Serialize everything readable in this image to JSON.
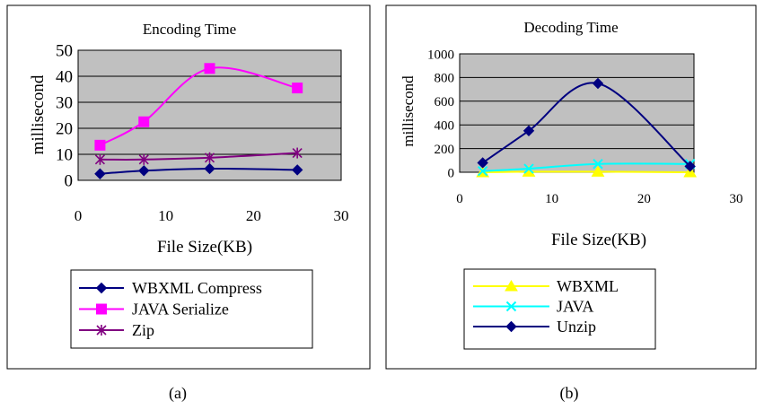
{
  "panels": [
    {
      "caption": "(a)",
      "chart_data": {
        "type": "line",
        "title": "Encoding Time",
        "xlabel": "File Size(KB)",
        "ylabel": "millisecond",
        "xlim": [
          0,
          30
        ],
        "ylim": [
          0,
          50
        ],
        "xticks": [
          0,
          10,
          20,
          30
        ],
        "yticks": [
          0,
          10,
          20,
          30,
          40,
          50
        ],
        "grid": true,
        "plot_background": "#c0c0c0",
        "legend_position": "bottom",
        "series": [
          {
            "name": "WBXML Compress",
            "color": "#000080",
            "marker": "diamond",
            "x": [
              2.5,
              7.5,
              15,
              25
            ],
            "y": [
              2.5,
              3.7,
              4.5,
              4
            ]
          },
          {
            "name": "JAVA Serialize",
            "color": "#ff00ff",
            "marker": "square",
            "x": [
              2.5,
              7.5,
              15,
              25
            ],
            "y": [
              13.5,
              22.5,
              43,
              35.5
            ]
          },
          {
            "name": "Zip",
            "color": "#800080",
            "marker": "asterisk",
            "x": [
              2.5,
              7.5,
              15,
              25
            ],
            "y": [
              8,
              8,
              8.7,
              10.5
            ]
          }
        ]
      }
    },
    {
      "caption": "(b)",
      "chart_data": {
        "type": "line",
        "title": "Decoding Time",
        "xlabel": "File Size(KB)",
        "ylabel": "millisecond",
        "xlim": [
          0,
          30
        ],
        "ylim": [
          0,
          1000
        ],
        "xticks": [
          0,
          10,
          20,
          30
        ],
        "yticks": [
          0,
          200,
          400,
          600,
          800,
          1000
        ],
        "grid": true,
        "plot_background": "#c0c0c0",
        "legend_position": "bottom",
        "series": [
          {
            "name": "WBXML",
            "color": "#ffff00",
            "marker": "triangle",
            "x": [
              2.5,
              7.5,
              15,
              25
            ],
            "y": [
              0,
              5,
              5,
              0
            ]
          },
          {
            "name": "JAVA",
            "color": "#00ffff",
            "marker": "x",
            "x": [
              2.5,
              7.5,
              15,
              25
            ],
            "y": [
              10,
              30,
              70,
              70
            ]
          },
          {
            "name": "Unzip",
            "color": "#000080",
            "marker": "diamond",
            "x": [
              2.5,
              7.5,
              15,
              25
            ],
            "y": [
              80,
              350,
              750,
              50
            ]
          }
        ]
      }
    }
  ]
}
